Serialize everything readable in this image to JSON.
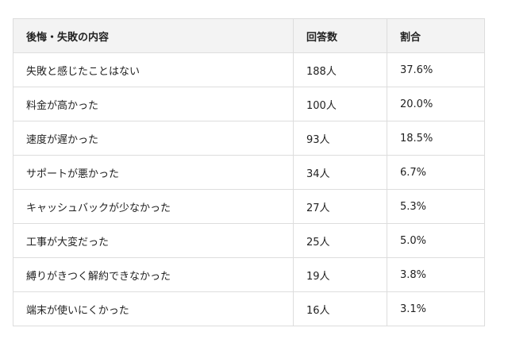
{
  "table": {
    "headers": [
      "後悔・失敗の内容",
      "回答数",
      "割合"
    ],
    "rows": [
      [
        "失敗と感じたことはない",
        "188人",
        "37.6%"
      ],
      [
        "料金が高かった",
        "100人",
        "20.0%"
      ],
      [
        "速度が遅かった",
        "93人",
        "18.5%"
      ],
      [
        "サポートが悪かった",
        "34人",
        "6.7%"
      ],
      [
        "キャッシュバックが少なかった",
        "27人",
        "5.3%"
      ],
      [
        "工事が大変だった",
        "25人",
        "5.0%"
      ],
      [
        "縛りがきつく解約できなかった",
        "19人",
        "3.8%"
      ],
      [
        "端末が使いにくかった",
        "16人",
        "3.1%"
      ]
    ]
  }
}
